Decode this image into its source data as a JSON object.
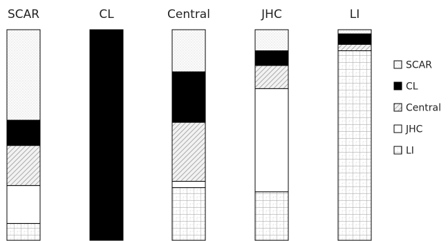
{
  "chart_data": {
    "type": "bar",
    "stacked": true,
    "normalized": true,
    "categories": [
      "SCAR",
      "CL",
      "Central",
      "JHC",
      "LI"
    ],
    "series": [
      {
        "name": "SCAR",
        "pattern": "dots",
        "values": [
          0.43,
          0.0,
          0.2,
          0.1,
          0.02
        ]
      },
      {
        "name": "CL",
        "pattern": "solid",
        "values": [
          0.12,
          1.0,
          0.24,
          0.07,
          0.05
        ]
      },
      {
        "name": "Central",
        "pattern": "diagonal",
        "values": [
          0.19,
          0.0,
          0.28,
          0.11,
          0.03
        ]
      },
      {
        "name": "JHC",
        "pattern": "blank",
        "values": [
          0.18,
          0.0,
          0.03,
          0.49,
          0.0
        ]
      },
      {
        "name": "LI",
        "pattern": "grid",
        "values": [
          0.08,
          0.0,
          0.25,
          0.23,
          0.9
        ]
      }
    ],
    "legend_position": "right",
    "ylim": [
      0,
      1
    ],
    "grid": false
  }
}
